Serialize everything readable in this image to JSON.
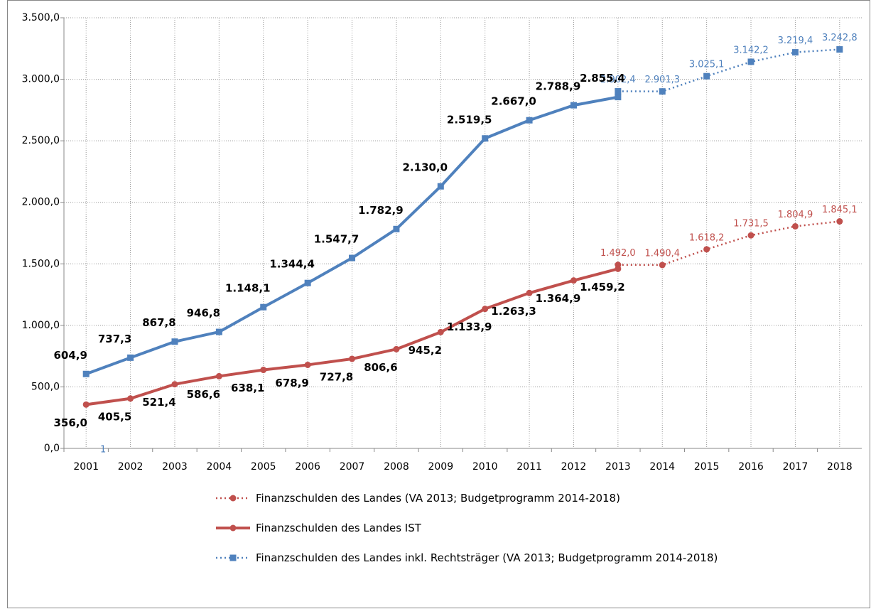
{
  "chart_data": {
    "type": "line",
    "categories": [
      "2001",
      "2002",
      "2003",
      "2004",
      "2005",
      "2006",
      "2007",
      "2008",
      "2009",
      "2010",
      "2011",
      "2012",
      "2013",
      "2014",
      "2015",
      "2016",
      "2017",
      "2018"
    ],
    "ylim": [
      0,
      3500
    ],
    "yticks": [
      {
        "value": 0,
        "label": "0,0"
      },
      {
        "value": 500,
        "label": "500,0"
      },
      {
        "value": 1000,
        "label": "1.000,0"
      },
      {
        "value": 1500,
        "label": "1.500,0"
      },
      {
        "value": 2000,
        "label": "2.000,0"
      },
      {
        "value": 2500,
        "label": "2.500,0"
      },
      {
        "value": 3000,
        "label": "3.000,0"
      },
      {
        "value": 3500,
        "label": "3.500,0"
      }
    ],
    "grid": true,
    "annotation": "1",
    "series": [
      {
        "name": "Finanzschulden des Landes (VA 2013; Budgetprogramm 2014-2018)",
        "color": "#c0504d",
        "dash": "dotted",
        "marker": "circle",
        "label_color": "#c0504d",
        "label_position": "above",
        "values": [
          null,
          null,
          null,
          null,
          null,
          null,
          null,
          null,
          null,
          null,
          null,
          null,
          1492.0,
          1490.4,
          1618.2,
          1731.5,
          1804.9,
          1845.1
        ],
        "value_labels": [
          null,
          null,
          null,
          null,
          null,
          null,
          null,
          null,
          null,
          null,
          null,
          null,
          "1.492,0",
          "1.490,4",
          "1.618,2",
          "1.731,5",
          "1.804,9",
          "1.845,1"
        ]
      },
      {
        "name": "Finanzschulden des Landes IST",
        "color": "#c0504d",
        "dash": "solid",
        "marker": "circle",
        "label_color": "#000000",
        "label_position": "below",
        "values": [
          356.0,
          405.5,
          521.4,
          586.6,
          638.1,
          678.9,
          727.8,
          806.6,
          945.2,
          1133.9,
          1263.3,
          1364.9,
          1459.2,
          null,
          null,
          null,
          null,
          null
        ],
        "value_labels": [
          "356,0",
          "405,5",
          "521,4",
          "586,6",
          "638,1",
          "678,9",
          "727,8",
          "806,6",
          "945,2",
          "1.133,9",
          "1.263,3",
          "1.364,9",
          "1.459,2",
          null,
          null,
          null,
          null,
          null
        ]
      },
      {
        "name": "Finanzschulden des Landes inkl. Rechtsträger (VA 2013; Budgetprogramm 2014-2018)",
        "color": "#4f81bd",
        "dash": "dotted",
        "marker": "square",
        "label_color": "#4f81bd",
        "label_position": "above",
        "values": [
          null,
          null,
          null,
          null,
          null,
          null,
          null,
          null,
          null,
          null,
          null,
          null,
          2902.4,
          2901.3,
          3025.1,
          3142.2,
          3219.4,
          3242.8
        ],
        "value_labels": [
          null,
          null,
          null,
          null,
          null,
          null,
          null,
          null,
          null,
          null,
          null,
          null,
          "2.902,4",
          "2.901,3",
          "3.025,1",
          "3.142,2",
          "3.219,4",
          "3.242,8"
        ]
      },
      {
        "color": "#4f81bd",
        "dash": "solid",
        "marker": "square",
        "label_color": "#000000",
        "label_position": "above",
        "values": [
          604.9,
          737.3,
          867.8,
          946.8,
          1148.1,
          1344.4,
          1547.7,
          1782.9,
          2130.0,
          2519.5,
          2667.0,
          2788.9,
          2855.4,
          null,
          null,
          null,
          null,
          null
        ],
        "value_labels": [
          "604,9",
          "737,3",
          "867,8",
          "946,8",
          "1.148,1",
          "1.344,4",
          "1.547,7",
          "1.782,9",
          "2.130,0",
          "2.519,5",
          "2.667,0",
          "2.788,9",
          "2.855,4",
          null,
          null,
          null,
          null,
          null
        ]
      }
    ]
  }
}
